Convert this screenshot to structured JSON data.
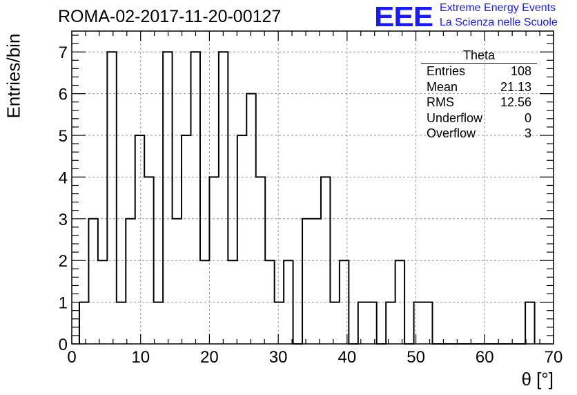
{
  "header": {
    "run_title": "ROMA-02-2017-11-20-00127",
    "logo_text": "EEE",
    "logo_line1": "Extreme Energy Events",
    "logo_line2": "La Scienza nelle Scuole"
  },
  "stats": {
    "title": "Theta",
    "rows": [
      {
        "label": "Entries",
        "value": "108"
      },
      {
        "label": "Mean",
        "value": "21.13"
      },
      {
        "label": "RMS",
        "value": "12.56"
      },
      {
        "label": "Underflow",
        "value": "0"
      },
      {
        "label": "Overflow",
        "value": "3"
      }
    ]
  },
  "colors": {
    "logo": "#1a1aff",
    "line": "#000000",
    "grid": "#999999"
  },
  "chart_data": {
    "type": "bar",
    "xlabel": "θ [°]",
    "ylabel": "Entries/bin",
    "xlim": [
      0,
      70
    ],
    "ylim": [
      0,
      7.5
    ],
    "x_ticks": [
      0,
      10,
      20,
      30,
      40,
      50,
      60,
      70
    ],
    "y_ticks": [
      0,
      1,
      2,
      3,
      4,
      5,
      6,
      7
    ],
    "grid": true,
    "bin_width": 1.35,
    "bin_start": 1.1,
    "values": [
      1,
      3,
      2,
      7,
      1,
      3,
      5,
      4,
      1,
      7,
      3,
      5,
      7,
      2,
      4,
      7,
      2,
      5,
      6,
      4,
      2,
      1,
      2,
      0,
      3,
      3,
      4,
      1,
      2,
      0,
      1,
      1,
      0,
      1,
      2,
      0,
      1,
      1,
      0,
      0,
      0,
      0,
      0,
      0,
      0,
      0,
      0,
      0,
      1
    ]
  }
}
